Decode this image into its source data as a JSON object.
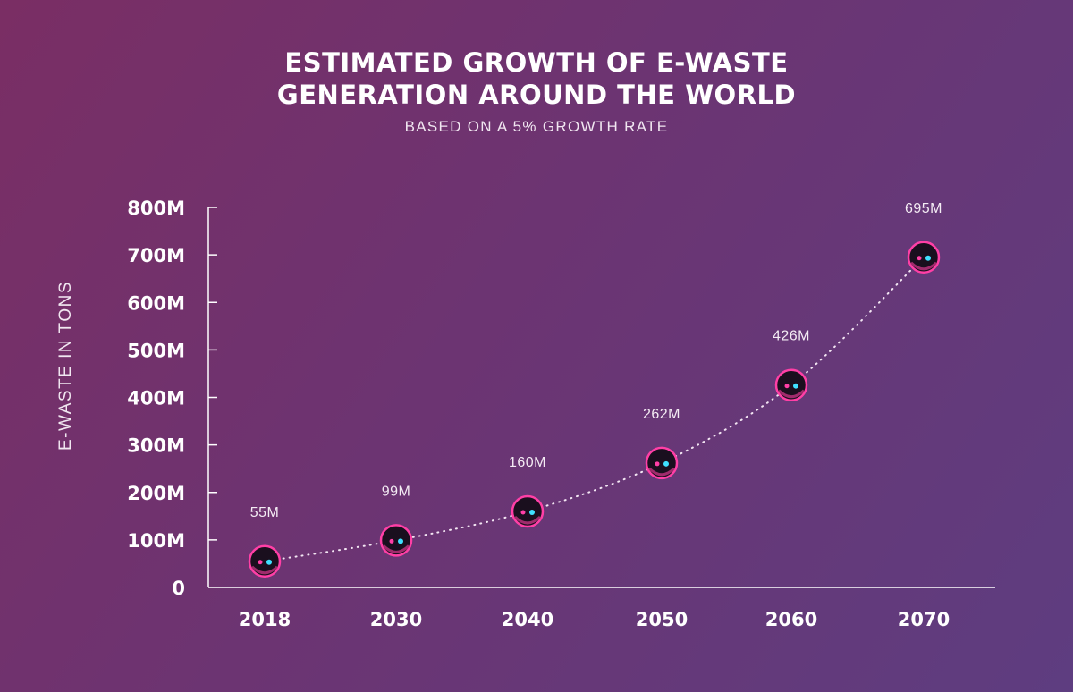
{
  "chart_data": {
    "type": "line",
    "title_line1": "Estimated growth of e-waste",
    "title_line2": "generation around the world",
    "subtitle": "BASED ON A 5% GROWTH RATE",
    "ylabel": "E-WASTE IN TONS",
    "xlabel": "",
    "categories": [
      "2018",
      "2030",
      "2040",
      "2050",
      "2060",
      "2070"
    ],
    "values": [
      55,
      99,
      160,
      262,
      426,
      695
    ],
    "value_labels": [
      "55M",
      "99M",
      "160M",
      "262M",
      "426M",
      "695M"
    ],
    "y_ticks": [
      0,
      100,
      200,
      300,
      400,
      500,
      600,
      700,
      800
    ],
    "y_tick_labels": [
      "0",
      "100M",
      "200M",
      "300M",
      "400M",
      "500M",
      "600M",
      "700M",
      "800M"
    ],
    "ylim": [
      0,
      800
    ],
    "unit": "million tons",
    "grid": false,
    "colors": {
      "line": "#f3e6f3",
      "marker_fill": "#1a0f1e",
      "marker_ring": "#ff3fa6",
      "marker_accent": "#3fe0ff"
    }
  }
}
